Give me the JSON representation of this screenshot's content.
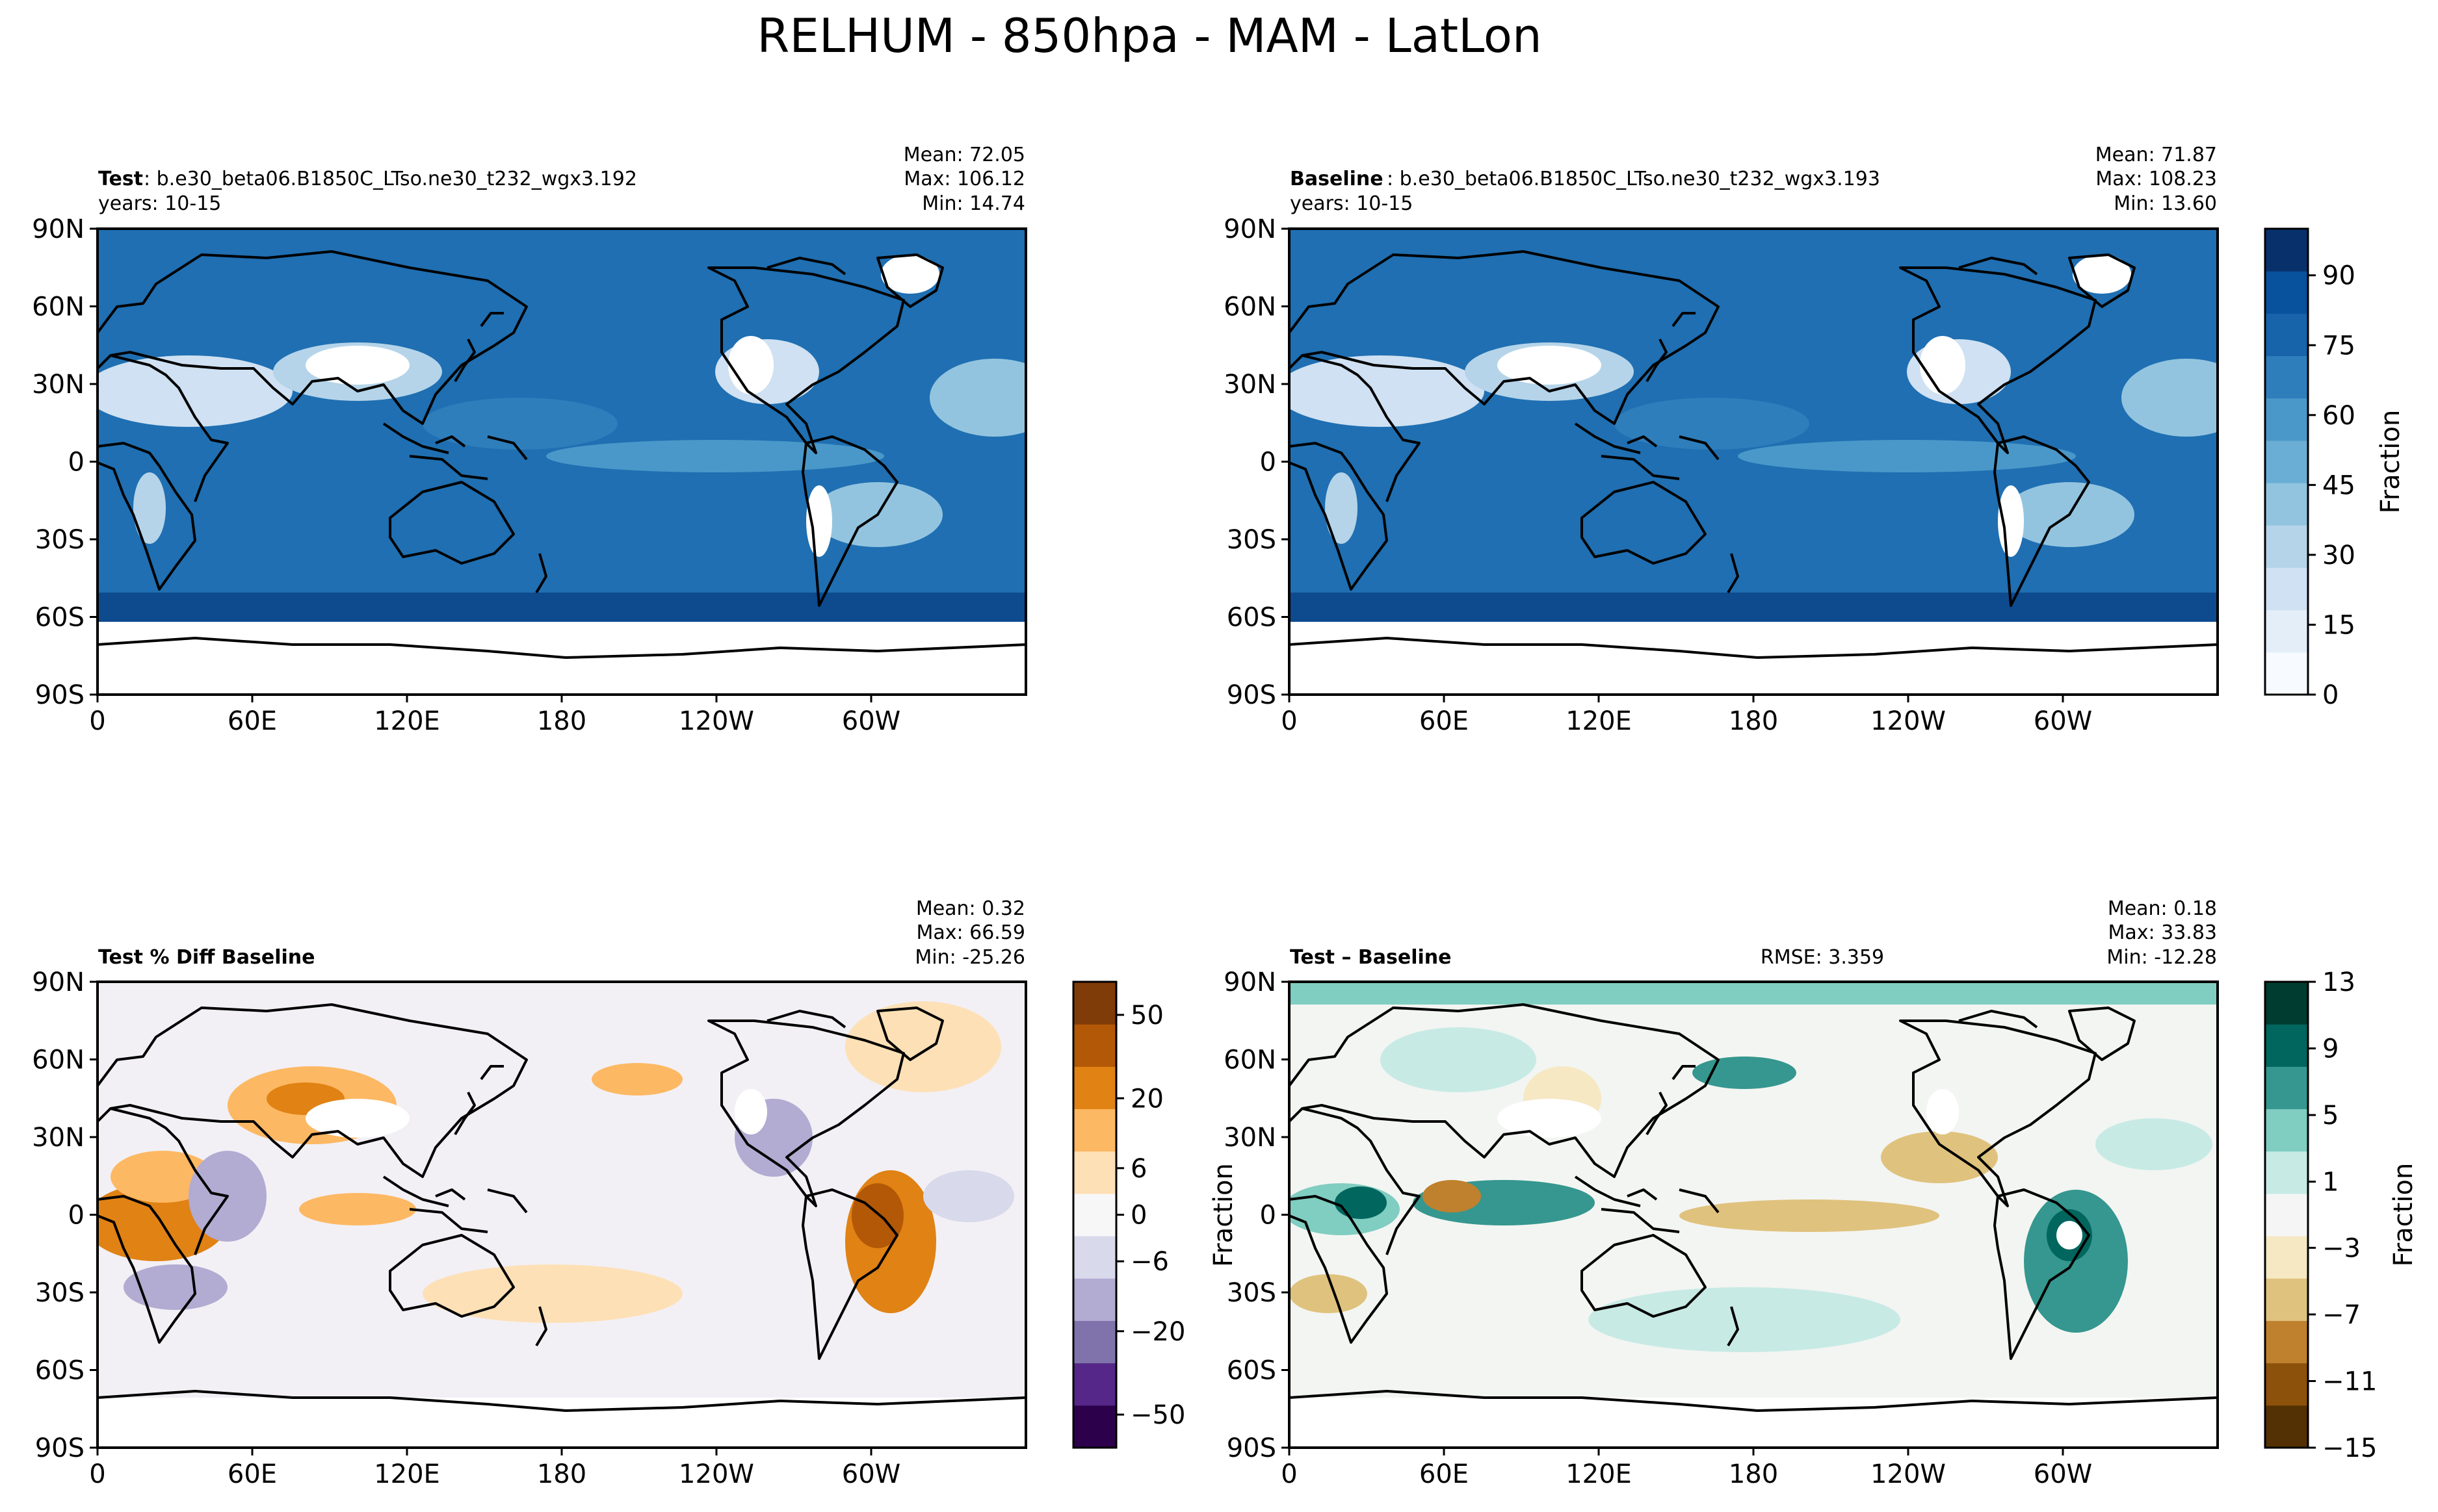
{
  "figure": {
    "title": "RELHUM - 850hpa - MAM - LatLon"
  },
  "panels": [
    {
      "id": "test",
      "title_bold": "Test",
      "title_rest": ": b.e30_beta06.B1850C_LTso.ne30_t232_wgx3.192",
      "years": "years: 10-15",
      "stats": {
        "mean": "Mean: 72.05",
        "max": "Max: 106.12",
        "min": "Min: 14.74"
      },
      "rmse": ""
    },
    {
      "id": "baseline",
      "title_bold": "Baseline",
      "title_rest": ": b.e30_beta06.B1850C_LTso.ne30_t232_wgx3.193",
      "years": "years: 10-15",
      "stats": {
        "mean": "Mean: 71.87",
        "max": "Max: 108.23",
        "min": "Min: 13.60"
      },
      "rmse": ""
    },
    {
      "id": "pctdiff",
      "title_bold": "Test % Diff Baseline",
      "title_rest": "",
      "years": "",
      "stats": {
        "mean": "Mean:  0.32",
        "max": "Max: 66.59",
        "min": "Min: -25.26"
      },
      "rmse": ""
    },
    {
      "id": "diff",
      "title_bold": "Test – Baseline",
      "title_rest": "",
      "years": "",
      "stats": {
        "mean": "Mean:  0.18",
        "max": "Max: 33.83",
        "min": "Min: -12.28"
      },
      "rmse": "RMSE: 3.359"
    }
  ],
  "colorbars": {
    "abs": {
      "label": "Fraction",
      "ticks": [
        "0",
        "15",
        "30",
        "45",
        "60",
        "75",
        "90"
      ]
    },
    "pct": {
      "label": "",
      "ticks": [
        "−50",
        "−20",
        "−6",
        "0",
        "6",
        "20",
        "50"
      ]
    },
    "diff": {
      "label": "Fraction",
      "ticks": [
        "−15",
        "−11",
        "−7",
        "−3",
        "1",
        "5",
        "9",
        "13"
      ]
    }
  },
  "diff_panel_ylabel": "Fraction",
  "colors": {
    "abs": [
      "#f7fbff",
      "#e3eef9",
      "#cfe1f2",
      "#b5d4e9",
      "#93c4df",
      "#6aaed6",
      "#4a98c9",
      "#2e7ebc",
      "#1764ab",
      "#08519c",
      "#08306b"
    ],
    "pct": [
      "#2d004b",
      "#542788",
      "#8073ac",
      "#b2abd2",
      "#d8daeb",
      "#f7f7f7",
      "#fee0b6",
      "#fdb863",
      "#e08214",
      "#b35806",
      "#7f3b08"
    ],
    "diff": [
      "#543005",
      "#8c510a",
      "#bf812d",
      "#dfc27d",
      "#f6e8c3",
      "#f5f5f5",
      "#c7eae5",
      "#80cdc1",
      "#35978f",
      "#01665e",
      "#003c30"
    ]
  },
  "chart_data": [
    {
      "type": "heatmap",
      "title": "Test: b.e30_beta06.B1850C_LTso.ne30_t232_wgx3.192",
      "variable": "RELHUM 850hpa MAM",
      "xlabel": "",
      "ylabel": "",
      "x_ticks": [
        "0",
        "60E",
        "120E",
        "180",
        "120W",
        "60W"
      ],
      "y_ticks": [
        "90N",
        "60N",
        "30N",
        "0",
        "30S",
        "60S",
        "90S"
      ],
      "x_range": [
        0,
        360
      ],
      "y_range": [
        -90,
        90
      ],
      "color_range": [
        0,
        100
      ],
      "mean": 72.05,
      "max": 106.12,
      "min": 14.74
    },
    {
      "type": "heatmap",
      "title": "Baseline: b.e30_beta06.B1850C_LTso.ne30_t232_wgx3.193",
      "variable": "RELHUM 850hpa MAM",
      "xlabel": "",
      "ylabel": "",
      "x_ticks": [
        "0",
        "60E",
        "120E",
        "180",
        "120W",
        "60W"
      ],
      "y_ticks": [
        "90N",
        "60N",
        "30N",
        "0",
        "30S",
        "60S",
        "90S"
      ],
      "x_range": [
        0,
        360
      ],
      "y_range": [
        -90,
        90
      ],
      "color_range": [
        0,
        100
      ],
      "mean": 71.87,
      "max": 108.23,
      "min": 13.6
    },
    {
      "type": "heatmap",
      "title": "Test % Diff Baseline",
      "x_ticks": [
        "0",
        "60E",
        "120E",
        "180",
        "120W",
        "60W"
      ],
      "y_ticks": [
        "90N",
        "60N",
        "30N",
        "0",
        "30S",
        "60S",
        "90S"
      ],
      "x_range": [
        0,
        360
      ],
      "y_range": [
        -90,
        90
      ],
      "color_levels": [
        -50,
        -20,
        -6,
        0,
        6,
        20,
        50
      ],
      "mean": 0.32,
      "max": 66.59,
      "min": -25.26
    },
    {
      "type": "heatmap",
      "title": "Test - Baseline",
      "ylabel": "Fraction",
      "x_ticks": [
        "0",
        "60E",
        "120E",
        "180",
        "120W",
        "60W"
      ],
      "y_ticks": [
        "90N",
        "60N",
        "30N",
        "0",
        "30S",
        "60S",
        "90S"
      ],
      "x_range": [
        0,
        360
      ],
      "y_range": [
        -90,
        90
      ],
      "color_range": [
        -15,
        13
      ],
      "mean": 0.18,
      "max": 33.83,
      "min": -12.28,
      "rmse": 3.359
    }
  ]
}
